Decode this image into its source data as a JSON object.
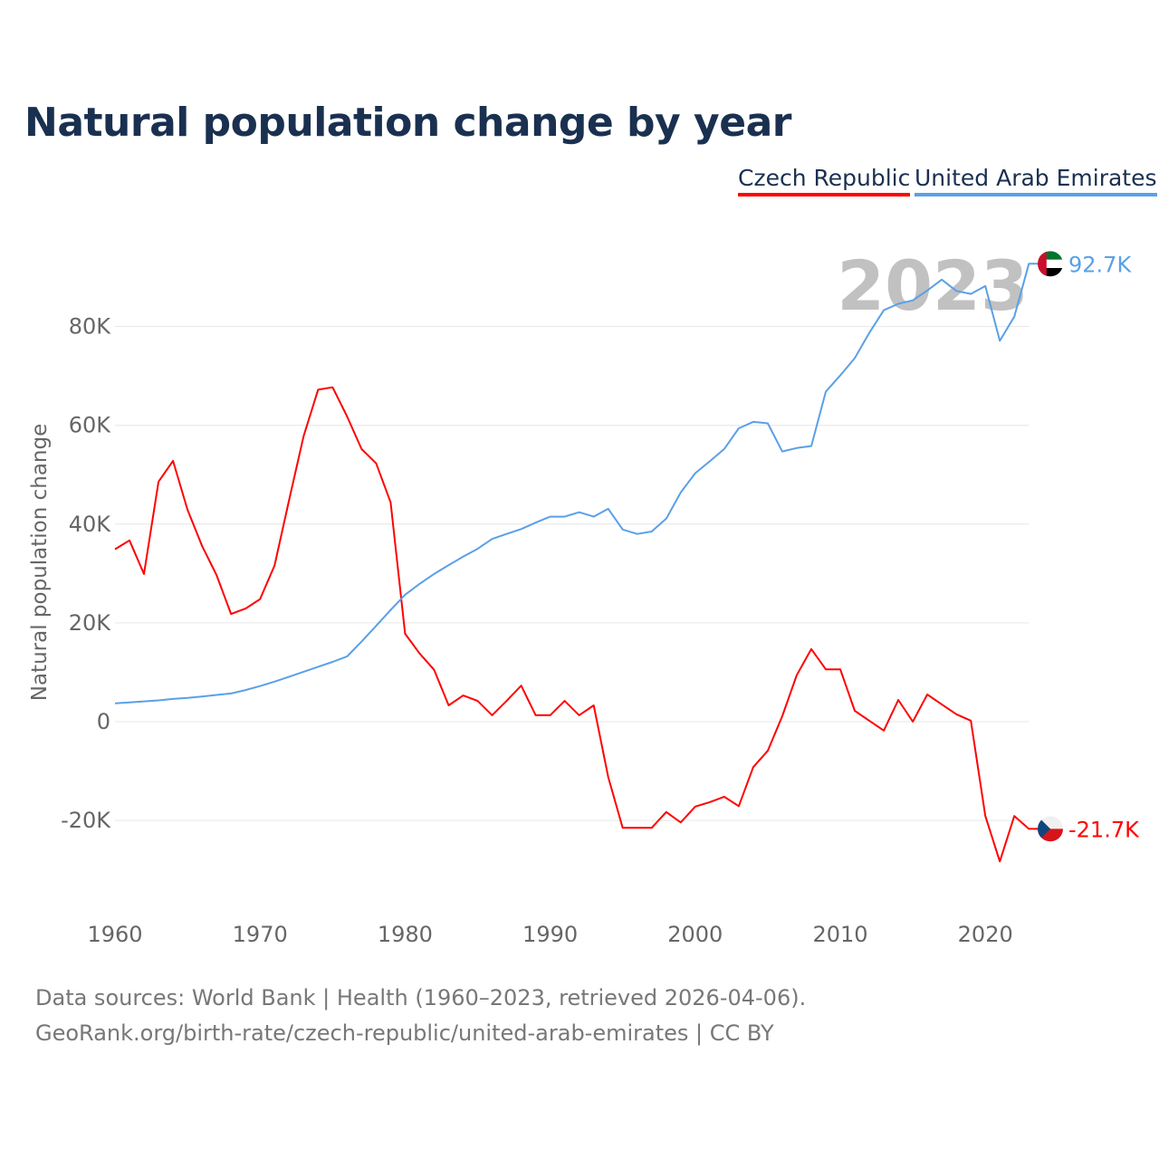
{
  "chart_data": {
    "type": "line",
    "title": "Natural population change by year",
    "xlabel": "",
    "ylabel": "Natural population change",
    "xlim": [
      1960,
      2023
    ],
    "ylim": [
      -35000,
      95000
    ],
    "x_ticks": [
      "1960",
      "1970",
      "1980",
      "1990",
      "2000",
      "2010",
      "2020"
    ],
    "y_ticks": [
      {
        "v": -20000,
        "label": "-20K"
      },
      {
        "v": 0,
        "label": "0"
      },
      {
        "v": 20000,
        "label": "20K"
      },
      {
        "v": 40000,
        "label": "40K"
      },
      {
        "v": 60000,
        "label": "60K"
      },
      {
        "v": 80000,
        "label": "80K"
      }
    ],
    "year_label": "2023",
    "x": [
      1960,
      1961,
      1962,
      1963,
      1964,
      1965,
      1966,
      1967,
      1968,
      1969,
      1970,
      1971,
      1972,
      1973,
      1974,
      1975,
      1976,
      1977,
      1978,
      1979,
      1980,
      1981,
      1982,
      1983,
      1984,
      1985,
      1986,
      1987,
      1988,
      1989,
      1990,
      1991,
      1992,
      1993,
      1994,
      1995,
      1996,
      1997,
      1998,
      1999,
      2000,
      2001,
      2002,
      2003,
      2004,
      2005,
      2006,
      2007,
      2008,
      2009,
      2010,
      2011,
      2012,
      2013,
      2014,
      2015,
      2016,
      2017,
      2018,
      2019,
      2020,
      2021,
      2022,
      2023
    ],
    "series": [
      {
        "name": "Czech Republic",
        "color": "#ff0000",
        "end_label": "-21.7K",
        "flag": "cz",
        "values": [
          34.9,
          36.7,
          29.9,
          48.6,
          52.8,
          42.9,
          35.6,
          29.7,
          21.8,
          22.9,
          24.8,
          31.6,
          44.8,
          57.8,
          67.2,
          67.7,
          61.8,
          55.2,
          52.3,
          44.4,
          17.8,
          13.8,
          10.5,
          3.3,
          5.3,
          4.2,
          1.3,
          4.2,
          7.3,
          1.3,
          1.3,
          4.2,
          1.3,
          3.3,
          -11.2,
          -21.5,
          -21.5,
          -21.5,
          -18.3,
          -20.4,
          -17.2,
          -16.3,
          -15.2,
          -17.1,
          -9.2,
          -5.9,
          1.1,
          9.4,
          14.7,
          10.6,
          10.6,
          2.2,
          0.2,
          -1.8,
          4.4,
          0,
          5.5,
          3.5,
          1.5,
          0.2,
          -19.1,
          -28.3,
          -19.1,
          -21.7
        ]
      },
      {
        "name": "United Arab Emirates",
        "color": "#5aa0e8",
        "end_label": "92.7K",
        "flag": "ae",
        "values": [
          3.7,
          3.9,
          4.1,
          4.3,
          4.6,
          4.8,
          5.1,
          5.4,
          5.7,
          6.4,
          7.2,
          8.1,
          9.1,
          10.1,
          11.1,
          12.1,
          13.2,
          16.2,
          19.4,
          22.6,
          25.7,
          27.9,
          29.9,
          31.7,
          33.4,
          35,
          37,
          38,
          39,
          40.3,
          41.5,
          41.5,
          42.4,
          41.5,
          43.1,
          38.9,
          38,
          38.5,
          41.1,
          46.4,
          50.3,
          52.7,
          55.2,
          59.4,
          60.7,
          60.4,
          54.7,
          55.4,
          55.8,
          66.8,
          70.1,
          73.6,
          78.7,
          83.3,
          84.6,
          85.3,
          87.3,
          89.5,
          87.2,
          86.6,
          88.2,
          77.1,
          82,
          92.7
        ]
      }
    ],
    "value_unit": "thousands"
  },
  "source": {
    "line1": "Data sources: World Bank | Health (1960–2023, retrieved 2026-04-06).",
    "line2": "GeoRank.org/birth-rate/czech-republic/united-arab-emirates | CC BY"
  }
}
